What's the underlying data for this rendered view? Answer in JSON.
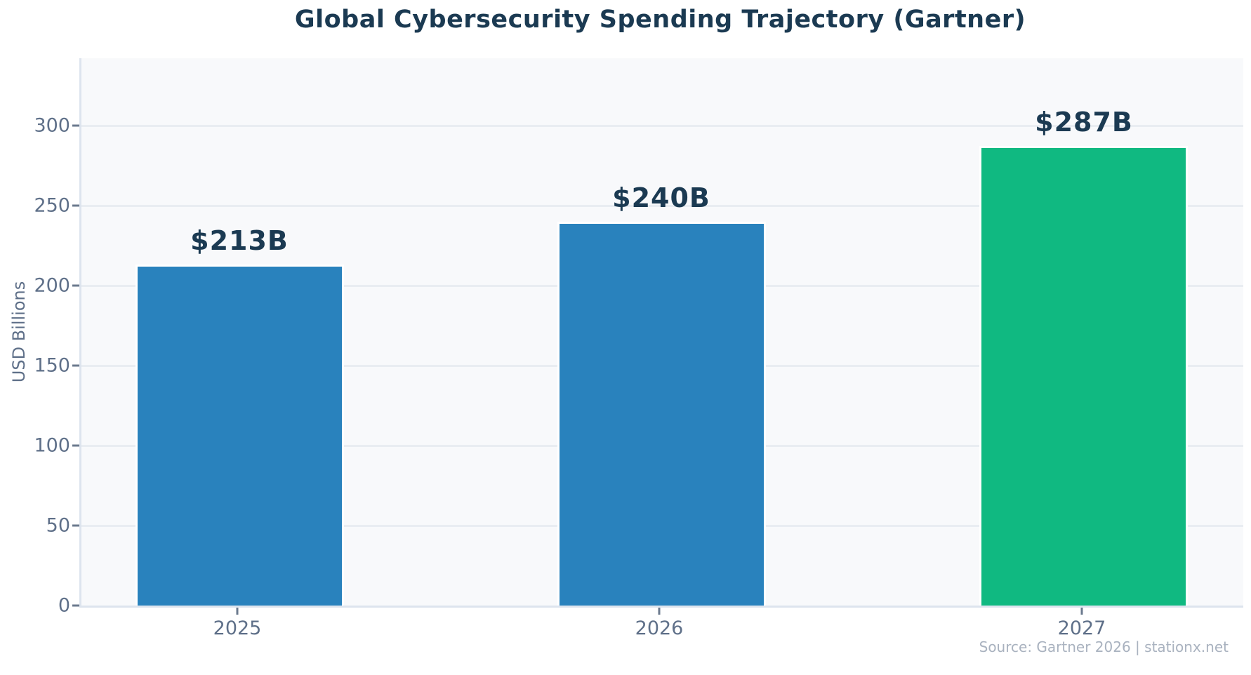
{
  "chart_data": {
    "type": "bar",
    "title": "Global Cybersecurity Spending Trajectory (Gartner)",
    "ylabel": "USD Billions",
    "xlabel": "",
    "categories": [
      "2025",
      "2026",
      "2027"
    ],
    "values": [
      213,
      240,
      287
    ],
    "bar_labels": [
      "$213B",
      "$240B",
      "$287B"
    ],
    "bar_colors": [
      "#2982bd",
      "#2982bd",
      "#10b981"
    ],
    "yticks": [
      0,
      50,
      100,
      150,
      200,
      250,
      300
    ],
    "ylim": [
      0,
      342
    ],
    "grid": true,
    "legend_position": "none",
    "source": "Source: Gartner 2026 | stationx.net",
    "colors": {
      "title_text": "#1b3a52",
      "value_label_text": "#1b3a52",
      "tick_label_text": "#5f7089",
      "axis_label_text": "#5f7089",
      "plot_background": "#f8f9fb",
      "gridline": "#e9edf2",
      "spine": "#dde4ee",
      "source_text": "#a9b2bf",
      "bar_blue": "#2982bd",
      "bar_green": "#10b981"
    }
  }
}
